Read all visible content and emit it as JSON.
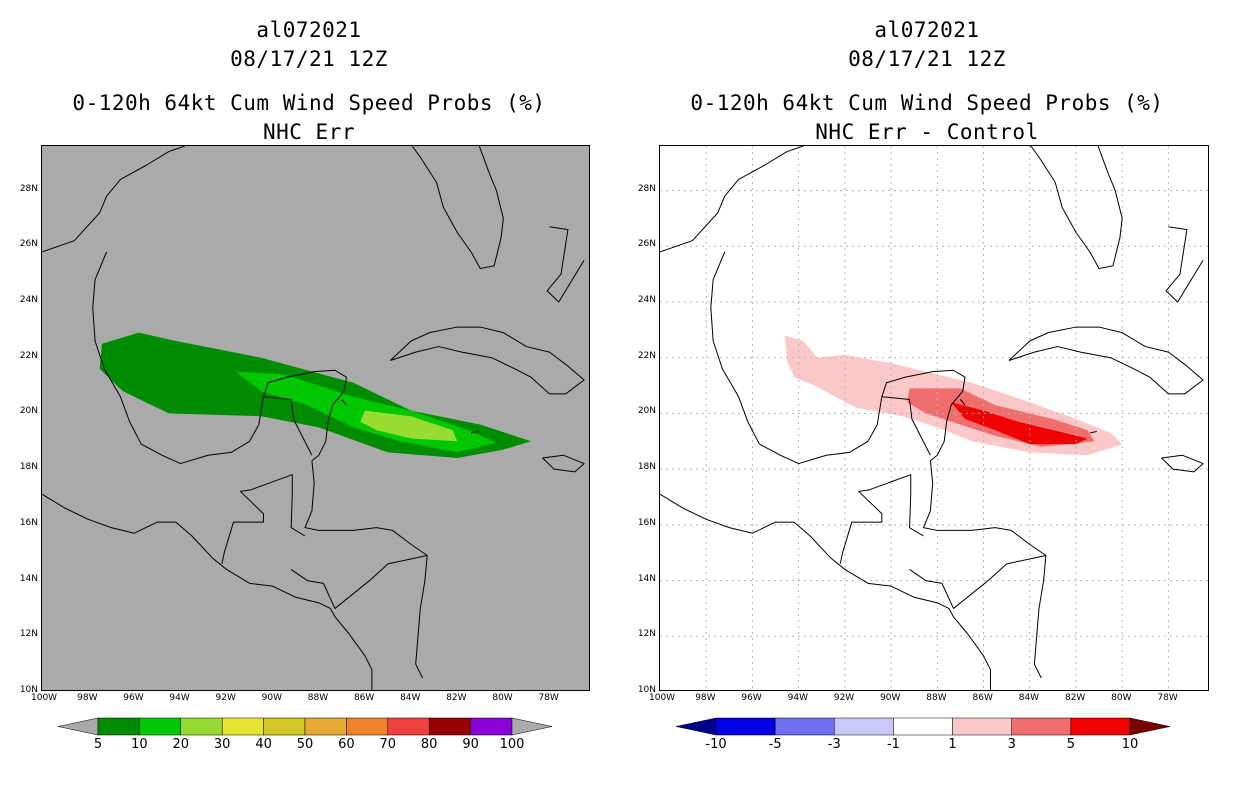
{
  "left": {
    "storm_id": "al072021",
    "date": "08/17/21 12Z",
    "product": "0-120h 64kt Cum Wind Speed Probs (%)",
    "subtitle": "NHC Err",
    "background": "#aaaaaa",
    "colorbar": {
      "labels": [
        "5",
        "10",
        "20",
        "30",
        "40",
        "50",
        "60",
        "70",
        "80",
        "90",
        "100"
      ],
      "colors": [
        "#008c00",
        "#00c800",
        "#96dc32",
        "#e6e632",
        "#d2c828",
        "#e6aa32",
        "#f0822d",
        "#f04141",
        "#960000",
        "#8c00dc"
      ],
      "low_color": "#aaaaaa",
      "high_color": "#aaaaaa"
    }
  },
  "right": {
    "storm_id": "al072021",
    "date": "08/17/21 12Z",
    "product": "0-120h 64kt Cum Wind Speed Probs (%)",
    "subtitle": "NHC Err - Control",
    "background": "#ffffff",
    "colorbar": {
      "labels": [
        "-10",
        "-5",
        "-3",
        "-1",
        "1",
        "3",
        "5",
        "10"
      ],
      "colors": [
        "#0000e6",
        "#6e6ef0",
        "#c8c8fa",
        "#ffffff",
        "#fac8c8",
        "#f06e6e",
        "#f00000"
      ],
      "low_color": "#00008c",
      "high_color": "#780000"
    }
  },
  "axes": {
    "lat_labels": [
      "28N",
      "26N",
      "24N",
      "22N",
      "20N",
      "18N",
      "16N",
      "14N",
      "12N",
      "10N"
    ],
    "lon_labels": [
      "100W",
      "98W",
      "96W",
      "94W",
      "92W",
      "90W",
      "88W",
      "86W",
      "84W",
      "82W",
      "80W",
      "78W"
    ]
  },
  "chart_data": {
    "type": "map",
    "projection": "lat-lon",
    "lon_range": [
      -100,
      -76.2
    ],
    "lat_range": [
      10,
      29.6
    ],
    "left_contours": [
      {
        "level": "5-10",
        "color": "#008c00",
        "polygon_lonlat": [
          [
            -97.4,
            22.5
          ],
          [
            -95.8,
            22.9
          ],
          [
            -94.2,
            22.6
          ],
          [
            -90.5,
            22.0
          ],
          [
            -86.5,
            21.1
          ],
          [
            -84.0,
            20.1
          ],
          [
            -81.0,
            19.6
          ],
          [
            -78.8,
            19.0
          ],
          [
            -80.0,
            18.7
          ],
          [
            -82.0,
            18.4
          ],
          [
            -85.0,
            18.6
          ],
          [
            -88.0,
            19.5
          ],
          [
            -90.5,
            19.9
          ],
          [
            -94.5,
            20.0
          ],
          [
            -96.5,
            20.8
          ],
          [
            -97.5,
            21.6
          ]
        ]
      },
      {
        "level": "10-20",
        "color": "#00c800",
        "polygon_lonlat": [
          [
            -91.6,
            21.5
          ],
          [
            -89.5,
            21.4
          ],
          [
            -86.5,
            20.6
          ],
          [
            -84.0,
            20.1
          ],
          [
            -81.5,
            19.4
          ],
          [
            -80.3,
            18.95
          ],
          [
            -82.0,
            18.6
          ],
          [
            -84.5,
            19.0
          ],
          [
            -86.5,
            19.5
          ],
          [
            -88.5,
            20.3
          ],
          [
            -90.5,
            20.8
          ]
        ]
      },
      {
        "level": "20-30",
        "color": "#96dc32",
        "polygon_lonlat": [
          [
            -86.0,
            20.1
          ],
          [
            -84.0,
            19.9
          ],
          [
            -82.2,
            19.4
          ],
          [
            -82.0,
            19.0
          ],
          [
            -84.0,
            19.1
          ],
          [
            -85.5,
            19.4
          ],
          [
            -86.2,
            19.7
          ]
        ]
      }
    ],
    "right_contours": [
      {
        "level": "1-3",
        "color": "#fac8c8",
        "polygon_lonlat": [
          [
            -94.6,
            22.8
          ],
          [
            -93.8,
            22.6
          ],
          [
            -93.2,
            22.0
          ],
          [
            -92.0,
            22.1
          ],
          [
            -90.0,
            21.8
          ],
          [
            -86.5,
            21.1
          ],
          [
            -84.0,
            20.4
          ],
          [
            -82.0,
            19.8
          ],
          [
            -80.5,
            19.3
          ],
          [
            -80.0,
            18.9
          ],
          [
            -81.5,
            18.5
          ],
          [
            -84.0,
            18.6
          ],
          [
            -86.5,
            19.0
          ],
          [
            -88.0,
            19.5
          ],
          [
            -89.5,
            19.9
          ],
          [
            -91.5,
            20.2
          ],
          [
            -93.3,
            21.0
          ],
          [
            -94.2,
            21.3
          ],
          [
            -94.5,
            21.9
          ]
        ]
      },
      {
        "level": "3-5",
        "color": "#f06e6e",
        "polygon_lonlat": [
          [
            -89.2,
            20.9
          ],
          [
            -87.0,
            20.9
          ],
          [
            -85.5,
            20.3
          ],
          [
            -83.0,
            19.8
          ],
          [
            -81.5,
            19.4
          ],
          [
            -81.2,
            19.0
          ],
          [
            -83.5,
            18.8
          ],
          [
            -85.5,
            19.2
          ],
          [
            -87.0,
            19.6
          ],
          [
            -88.5,
            20.0
          ],
          [
            -89.3,
            20.4
          ]
        ]
      },
      {
        "level": "5-10",
        "color": "#f00000",
        "polygon_lonlat": [
          [
            -87.4,
            20.4
          ],
          [
            -86.0,
            20.1
          ],
          [
            -84.5,
            19.7
          ],
          [
            -82.5,
            19.3
          ],
          [
            -81.5,
            19.1
          ],
          [
            -82.0,
            18.9
          ],
          [
            -84.0,
            18.9
          ],
          [
            -85.5,
            19.4
          ],
          [
            -86.8,
            19.8
          ]
        ]
      }
    ]
  }
}
